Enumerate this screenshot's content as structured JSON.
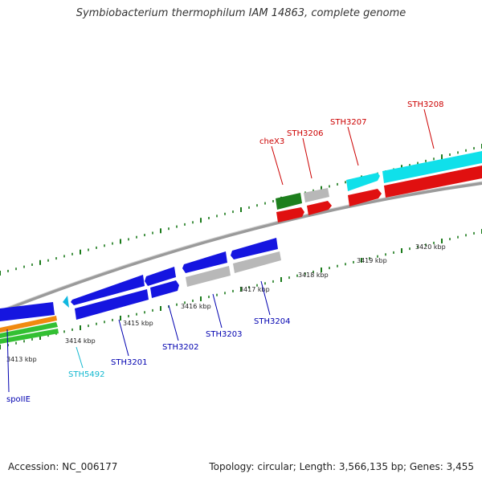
{
  "title": "Symbiobacterium thermophilum IAM 14863, complete genome",
  "footer": {
    "accession": "Accession: NC_006177",
    "topology": "Topology: circular; Length: 3,566,135 bp; Genes: 3,455"
  },
  "colors": {
    "blue": "#1515e0",
    "red": "#e01010",
    "cyan": "#10e0ea",
    "green": "#1d7f1d",
    "gray": "#b8b8b8",
    "orange": "#f08a10",
    "lightgreen": "#33c033",
    "backbone": "#888888",
    "tick": "#1a7a1a",
    "label_blue": "#0000b0",
    "label_red": "#cc0000",
    "label_cyan": "#12b8d0"
  },
  "scale_labels": [
    "3413 kbp",
    "3414 kbp",
    "3415 kbp",
    "3416 kbp",
    "3417 kbp",
    "3418 kbp",
    "3419 kbp",
    "3420 kbp"
  ],
  "gene_labels": [
    "spoIIE",
    "STH5492",
    "STH3201",
    "STH3202",
    "STH3203",
    "STH3204",
    "cheX3",
    "STH3206",
    "STH3207",
    "STH3208"
  ]
}
